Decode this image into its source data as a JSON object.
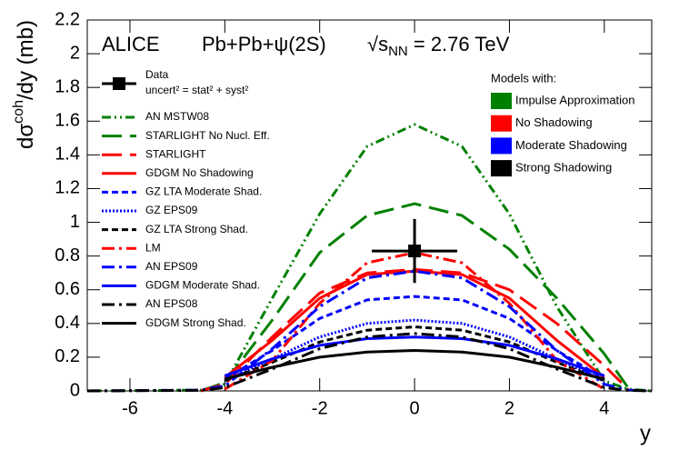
{
  "chart_data": {
    "type": "line",
    "title": "ALICE",
    "subtitle": "Pb+Pb+ψ(2S)",
    "energy": {
      "prefix": "√s",
      "sub": "NN",
      "suffix": " = 2.76 TeV"
    },
    "ylabel": {
      "main": "dσ",
      "sup": "coh",
      "rest": "/dy (mb)"
    },
    "xlabel": "y",
    "xlim": [
      -6.9,
      5.0
    ],
    "ylim": [
      0,
      2.2
    ],
    "xticks": [
      -6,
      -4,
      -2,
      0,
      2,
      4
    ],
    "yticks": [
      0,
      0.2,
      0.4,
      0.6,
      0.8,
      1,
      1.2,
      1.4,
      1.6,
      1.8,
      2,
      2.2
    ],
    "grid": false,
    "x": [
      -6.9,
      -4.5,
      -4,
      -3,
      -2,
      -1,
      0,
      1,
      2,
      3,
      4,
      4.5,
      5
    ],
    "series": [
      {
        "name": "AN MSTW08",
        "color": "#008000",
        "style": "dash-dot-dot",
        "values": [
          0,
          0.005,
          0.04,
          0.55,
          1.05,
          1.45,
          1.58,
          1.45,
          1.05,
          0.5,
          0.06,
          0.01,
          0
        ]
      },
      {
        "name": "STARLIGHT No Nucl. Eff.",
        "color": "#008000",
        "style": "long-dash",
        "values": [
          null,
          0,
          0.05,
          0.42,
          0.82,
          1.04,
          1.11,
          1.04,
          0.84,
          0.55,
          0.22,
          0.02,
          null
        ]
      },
      {
        "name": "STARLIGHT",
        "color": "#ff0000",
        "style": "long-dash",
        "values": [
          null,
          0,
          0.04,
          0.32,
          0.58,
          0.7,
          0.72,
          0.7,
          0.6,
          0.4,
          0.15,
          0.01,
          null
        ]
      },
      {
        "name": "GDGM No Shadowing",
        "color": "#ff0000",
        "style": "solid",
        "values": [
          null,
          null,
          0.08,
          0.3,
          0.55,
          0.69,
          0.71,
          0.69,
          0.55,
          0.3,
          0.08,
          null,
          null
        ]
      },
      {
        "name": "GZ LTA Moderate Shad.",
        "color": "#0000ff",
        "style": "dashed",
        "values": [
          null,
          null,
          0.07,
          0.24,
          0.43,
          0.54,
          0.56,
          0.54,
          0.43,
          0.24,
          0.07,
          null,
          null
        ]
      },
      {
        "name": "GZ EPS09",
        "color": "#0000ff",
        "style": "dotted",
        "values": [
          null,
          null,
          0.06,
          0.19,
          0.32,
          0.4,
          0.42,
          0.4,
          0.32,
          0.19,
          0.06,
          null,
          null
        ]
      },
      {
        "name": "GZ LTA Strong Shad.",
        "color": "#000000",
        "style": "dashed",
        "values": [
          null,
          null,
          0.06,
          0.17,
          0.29,
          0.36,
          0.38,
          0.36,
          0.29,
          0.17,
          0.06,
          null,
          null
        ]
      },
      {
        "name": "LM",
        "color": "#ff0000",
        "style": "dash-dot",
        "values": [
          null,
          null,
          0.01,
          0.18,
          0.52,
          0.76,
          0.82,
          0.76,
          0.52,
          0.18,
          0.01,
          null,
          null
        ]
      },
      {
        "name": "AN EPS09",
        "color": "#0000ff",
        "style": "dash-dot",
        "values": [
          0,
          0.005,
          0.03,
          0.25,
          0.5,
          0.67,
          0.71,
          0.67,
          0.5,
          0.24,
          0.04,
          0.005,
          0
        ]
      },
      {
        "name": "GDGM Moderate Shad.",
        "color": "#0000ff",
        "style": "solid",
        "values": [
          null,
          null,
          0.09,
          0.19,
          0.27,
          0.31,
          0.32,
          0.31,
          0.27,
          0.19,
          0.09,
          null,
          null
        ]
      },
      {
        "name": "AN EPS08",
        "color": "#000000",
        "style": "dash-dot",
        "values": [
          0,
          0.003,
          0.02,
          0.13,
          0.25,
          0.32,
          0.34,
          0.32,
          0.25,
          0.13,
          0.02,
          0.003,
          0
        ]
      },
      {
        "name": "GDGM Strong Shad.",
        "color": "#000000",
        "style": "solid",
        "values": [
          null,
          null,
          0.07,
          0.14,
          0.2,
          0.23,
          0.24,
          0.23,
          0.2,
          0.14,
          0.07,
          null,
          null
        ]
      }
    ],
    "data_point": {
      "name": "Data",
      "label": "uncert² = stat² + syst²",
      "x": 0,
      "xerr": 0.9,
      "y": 0.83,
      "yerr": 0.19,
      "color": "#000000"
    },
    "model_legend": {
      "title": "Models with:",
      "entries": [
        {
          "name": "Impulse Approximation",
          "color": "#008000"
        },
        {
          "name": "No Shadowing",
          "color": "#ff0000"
        },
        {
          "name": "Moderate Shadowing",
          "color": "#0000ff"
        },
        {
          "name": "Strong Shadowing",
          "color": "#000000"
        }
      ]
    }
  }
}
